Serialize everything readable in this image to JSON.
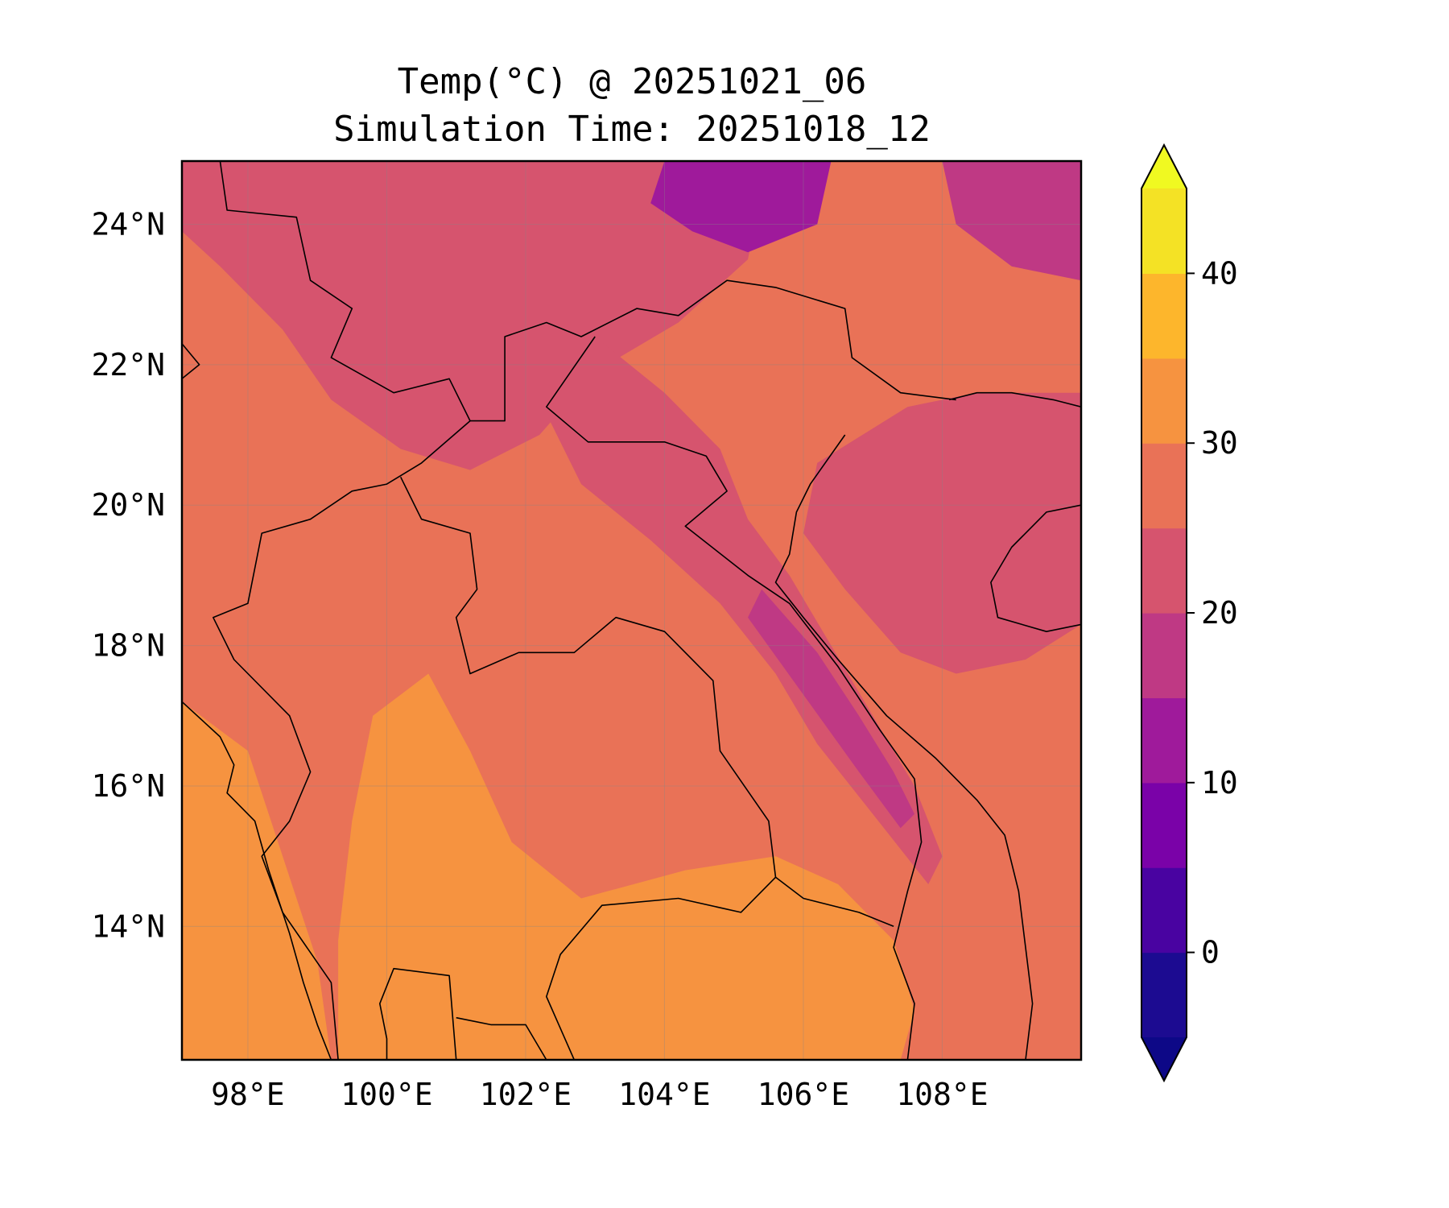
{
  "title_line1": "Temp(°C) @ 20251021_06",
  "title_line2": "Simulation Time: 20251018_12",
  "map": {
    "lon_range": [
      97.05,
      110.0
    ],
    "lat_range": [
      12.1,
      24.9
    ],
    "lon_ticks": [
      {
        "value": 98,
        "label": "98°E"
      },
      {
        "value": 100,
        "label": "100°E"
      },
      {
        "value": 102,
        "label": "102°E"
      },
      {
        "value": 104,
        "label": "104°E"
      },
      {
        "value": 106,
        "label": "106°E"
      },
      {
        "value": 108,
        "label": "108°E"
      }
    ],
    "lat_ticks": [
      {
        "value": 24,
        "label": "24°N"
      },
      {
        "value": 22,
        "label": "22°N"
      },
      {
        "value": 20,
        "label": "20°N"
      },
      {
        "value": 18,
        "label": "18°N"
      },
      {
        "value": 16,
        "label": "16°N"
      },
      {
        "value": 14,
        "label": "14°N"
      }
    ],
    "gridlines": true,
    "colormap": "plasma",
    "field_regions": [
      {
        "name": "west-coast-warm",
        "level": 30,
        "poly": [
          [
            97.05,
            12.1
          ],
          [
            97.05,
            17.2
          ],
          [
            98.0,
            16.5
          ],
          [
            98.5,
            15.0
          ],
          [
            99.0,
            13.5
          ],
          [
            99.2,
            12.1
          ]
        ]
      },
      {
        "name": "central-plain",
        "level": 30,
        "poly": [
          [
            99.3,
            12.1
          ],
          [
            99.3,
            13.8
          ],
          [
            99.5,
            15.5
          ],
          [
            99.8,
            17.0
          ],
          [
            100.6,
            17.6
          ],
          [
            101.2,
            16.5
          ],
          [
            101.8,
            15.2
          ],
          [
            102.8,
            14.4
          ],
          [
            104.3,
            14.8
          ],
          [
            105.6,
            15.0
          ],
          [
            106.5,
            14.6
          ],
          [
            107.3,
            13.8
          ],
          [
            107.6,
            12.8
          ],
          [
            107.4,
            12.1
          ]
        ]
      },
      {
        "name": "highlands-cool",
        "level": 20,
        "poly": [
          [
            97.05,
            24.9
          ],
          [
            105.5,
            24.9
          ],
          [
            105.2,
            23.5
          ],
          [
            104.2,
            22.6
          ],
          [
            103.0,
            21.9
          ],
          [
            102.2,
            21.0
          ],
          [
            101.2,
            20.5
          ],
          [
            100.2,
            20.8
          ],
          [
            99.2,
            21.5
          ],
          [
            98.5,
            22.5
          ],
          [
            97.6,
            23.4
          ],
          [
            97.05,
            23.9
          ]
        ]
      },
      {
        "name": "n-vietnam-uplands",
        "level": 20,
        "poly": [
          [
            103.0,
            22.4
          ],
          [
            104.0,
            21.6
          ],
          [
            104.8,
            20.8
          ],
          [
            105.2,
            19.8
          ],
          [
            105.8,
            19.0
          ],
          [
            106.4,
            18.0
          ],
          [
            107.0,
            17.0
          ],
          [
            107.6,
            16.0
          ],
          [
            108.0,
            15.0
          ],
          [
            107.8,
            14.6
          ],
          [
            107.0,
            15.6
          ],
          [
            106.2,
            16.6
          ],
          [
            105.6,
            17.6
          ],
          [
            104.8,
            18.6
          ],
          [
            103.8,
            19.5
          ],
          [
            102.8,
            20.3
          ],
          [
            102.3,
            21.3
          ]
        ]
      },
      {
        "name": "annamite-coldest",
        "level": 15,
        "poly": [
          [
            105.4,
            18.8
          ],
          [
            106.2,
            17.9
          ],
          [
            106.8,
            17.0
          ],
          [
            107.3,
            16.2
          ],
          [
            107.6,
            15.6
          ],
          [
            107.4,
            15.4
          ],
          [
            106.8,
            16.2
          ],
          [
            106.0,
            17.3
          ],
          [
            105.2,
            18.4
          ]
        ]
      },
      {
        "name": "yunnan-cold-core",
        "level": 10,
        "poly": [
          [
            104.0,
            24.9
          ],
          [
            106.4,
            24.9
          ],
          [
            106.2,
            24.0
          ],
          [
            105.2,
            23.6
          ],
          [
            104.4,
            23.9
          ],
          [
            103.8,
            24.3
          ]
        ]
      },
      {
        "name": "gulf-tonkin-sea",
        "level": 20,
        "poly": [
          [
            106.2,
            20.6
          ],
          [
            107.5,
            21.4
          ],
          [
            108.5,
            21.6
          ],
          [
            110.0,
            21.6
          ],
          [
            110.0,
            18.3
          ],
          [
            109.2,
            17.8
          ],
          [
            108.2,
            17.6
          ],
          [
            107.4,
            17.9
          ],
          [
            106.6,
            18.8
          ],
          [
            106.0,
            19.6
          ]
        ]
      },
      {
        "name": "ne-china-cool",
        "level": 15,
        "poly": [
          [
            108.0,
            24.9
          ],
          [
            110.0,
            24.9
          ],
          [
            110.0,
            23.2
          ],
          [
            109.0,
            23.4
          ],
          [
            108.2,
            24.0
          ]
        ]
      }
    ],
    "base_level": 25,
    "coastline_and_borders": [
      [
        [
          97.05,
          17.2
        ],
        [
          97.6,
          16.7
        ],
        [
          97.8,
          16.3
        ],
        [
          97.7,
          15.9
        ],
        [
          98.1,
          15.5
        ],
        [
          98.3,
          14.8
        ],
        [
          98.6,
          13.9
        ],
        [
          98.8,
          13.2
        ],
        [
          99.0,
          12.6
        ],
        [
          99.2,
          12.1
        ]
      ],
      [
        [
          97.6,
          24.9
        ],
        [
          97.7,
          24.2
        ],
        [
          98.7,
          24.1
        ],
        [
          98.9,
          23.2
        ],
        [
          99.5,
          22.8
        ],
        [
          99.2,
          22.1
        ],
        [
          100.1,
          21.6
        ],
        [
          100.9,
          21.8
        ],
        [
          101.2,
          21.2
        ],
        [
          101.7,
          21.2
        ],
        [
          101.7,
          22.4
        ],
        [
          102.3,
          22.6
        ],
        [
          102.8,
          22.4
        ],
        [
          103.6,
          22.8
        ],
        [
          104.2,
          22.7
        ],
        [
          104.9,
          23.2
        ],
        [
          105.6,
          23.1
        ],
        [
          106.6,
          22.8
        ],
        [
          106.7,
          22.1
        ],
        [
          107.4,
          21.6
        ],
        [
          108.2,
          21.5
        ]
      ],
      [
        [
          101.2,
          21.2
        ],
        [
          100.5,
          20.6
        ],
        [
          100.0,
          20.3
        ],
        [
          99.5,
          20.2
        ],
        [
          98.9,
          19.8
        ],
        [
          98.2,
          19.6
        ],
        [
          98.0,
          18.6
        ],
        [
          97.5,
          18.4
        ],
        [
          97.8,
          17.8
        ],
        [
          98.6,
          17.0
        ],
        [
          98.9,
          16.2
        ],
        [
          98.6,
          15.5
        ],
        [
          98.2,
          15.0
        ],
        [
          98.5,
          14.2
        ],
        [
          99.2,
          13.2
        ],
        [
          99.3,
          12.1
        ]
      ],
      [
        [
          100.2,
          20.4
        ],
        [
          100.5,
          19.8
        ],
        [
          101.2,
          19.6
        ],
        [
          101.3,
          18.8
        ],
        [
          101.0,
          18.4
        ],
        [
          101.2,
          17.6
        ],
        [
          101.9,
          17.9
        ],
        [
          102.7,
          17.9
        ],
        [
          103.3,
          18.4
        ],
        [
          104.0,
          18.2
        ],
        [
          104.7,
          17.5
        ],
        [
          104.8,
          16.5
        ],
        [
          105.5,
          15.5
        ],
        [
          105.6,
          14.7
        ],
        [
          105.1,
          14.2
        ],
        [
          104.2,
          14.4
        ],
        [
          103.1,
          14.3
        ],
        [
          102.5,
          13.6
        ],
        [
          102.3,
          13.0
        ],
        [
          102.7,
          12.1
        ]
      ],
      [
        [
          103.0,
          22.4
        ],
        [
          102.3,
          21.4
        ],
        [
          102.9,
          20.9
        ],
        [
          104.0,
          20.9
        ],
        [
          104.6,
          20.7
        ],
        [
          104.9,
          20.2
        ],
        [
          104.3,
          19.7
        ],
        [
          105.2,
          19.0
        ],
        [
          105.8,
          18.6
        ],
        [
          106.5,
          17.7
        ],
        [
          107.1,
          16.8
        ],
        [
          107.6,
          16.1
        ],
        [
          107.7,
          15.2
        ],
        [
          107.5,
          14.5
        ],
        [
          107.3,
          13.7
        ],
        [
          107.6,
          12.9
        ],
        [
          107.5,
          12.1
        ]
      ],
      [
        [
          105.6,
          14.7
        ],
        [
          106.0,
          14.4
        ],
        [
          106.8,
          14.2
        ],
        [
          107.3,
          14.0
        ]
      ],
      [
        [
          106.6,
          21.0
        ],
        [
          106.1,
          20.3
        ],
        [
          105.9,
          19.9
        ],
        [
          105.8,
          19.3
        ],
        [
          105.6,
          18.9
        ],
        [
          106.0,
          18.4
        ],
        [
          106.5,
          17.8
        ],
        [
          107.2,
          17.0
        ],
        [
          107.9,
          16.4
        ],
        [
          108.5,
          15.8
        ],
        [
          108.9,
          15.3
        ],
        [
          109.1,
          14.5
        ],
        [
          109.2,
          13.7
        ],
        [
          109.3,
          12.9
        ],
        [
          109.2,
          12.1
        ]
      ],
      [
        [
          110.0,
          21.4
        ],
        [
          109.6,
          21.5
        ],
        [
          109.0,
          21.6
        ],
        [
          108.5,
          21.6
        ],
        [
          108.1,
          21.5
        ]
      ],
      [
        [
          110.0,
          20.0
        ],
        [
          109.5,
          19.9
        ],
        [
          109.0,
          19.4
        ],
        [
          108.7,
          18.9
        ],
        [
          108.8,
          18.4
        ],
        [
          109.5,
          18.2
        ],
        [
          110.0,
          18.3
        ]
      ],
      [
        [
          101.0,
          12.1
        ],
        [
          100.9,
          13.3
        ],
        [
          100.1,
          13.4
        ],
        [
          99.9,
          12.9
        ],
        [
          100.0,
          12.4
        ],
        [
          100.0,
          12.1
        ]
      ],
      [
        [
          102.3,
          12.1
        ],
        [
          102.0,
          12.6
        ],
        [
          101.5,
          12.6
        ],
        [
          101.0,
          12.7
        ]
      ],
      [
        [
          97.05,
          21.8
        ],
        [
          97.3,
          22.0
        ],
        [
          97.05,
          22.3
        ]
      ]
    ]
  },
  "colorbar": {
    "levels": [
      -5,
      0,
      5,
      10,
      15,
      20,
      25,
      30,
      35,
      40,
      45
    ],
    "colors": [
      "#1c0b91",
      "#4903a1",
      "#7a02a8",
      "#9f1a9b",
      "#bf3984",
      "#d6546e",
      "#e97257",
      "#f69340",
      "#fdb62c",
      "#f4e225"
    ],
    "under_color": "#0d0887",
    "over_color": "#f0f921",
    "tick_labels": [
      {
        "value": 0,
        "label": "0"
      },
      {
        "value": 10,
        "label": "10"
      },
      {
        "value": 20,
        "label": "20"
      },
      {
        "value": 30,
        "label": "30"
      },
      {
        "value": 40,
        "label": "40"
      }
    ],
    "extend": "both"
  }
}
